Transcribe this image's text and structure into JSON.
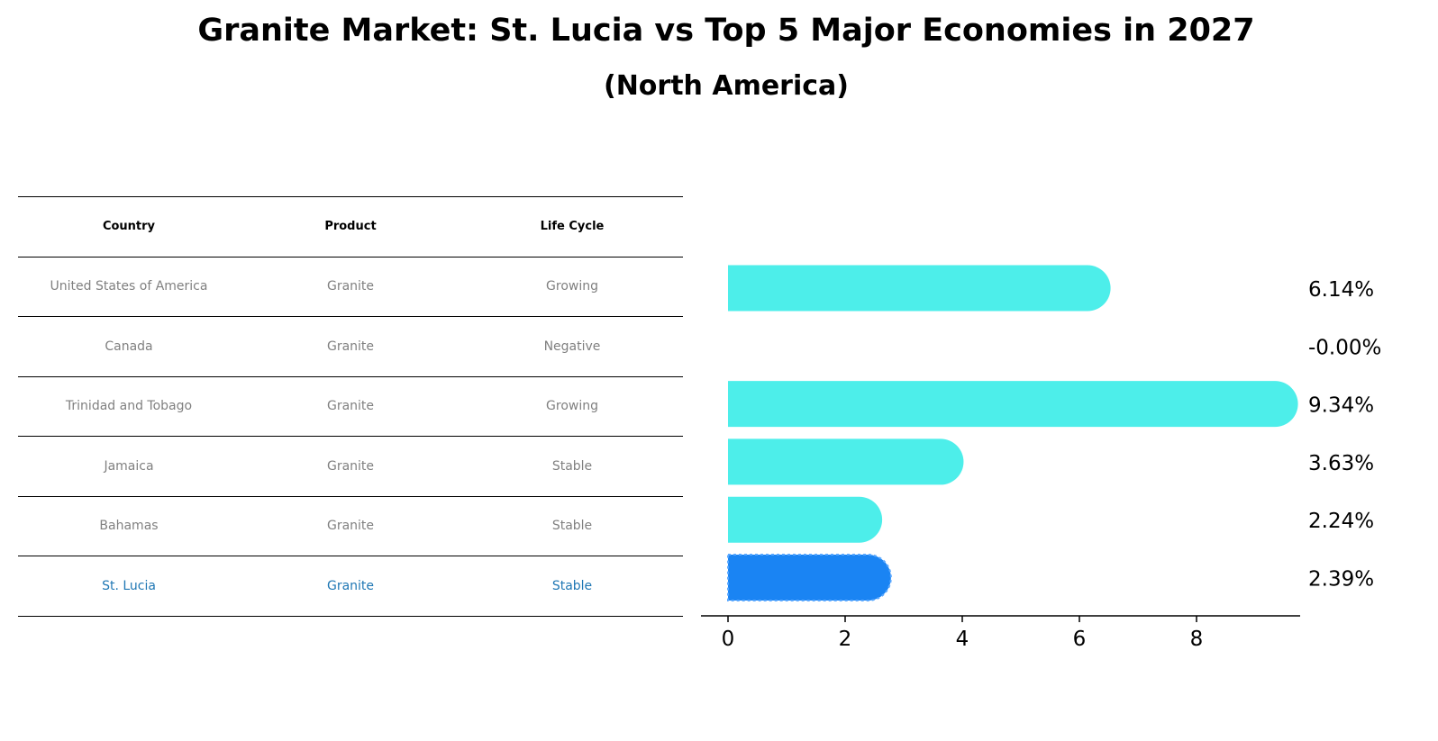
{
  "title": "Granite Market: St. Lucia vs Top 5 Major Economies in 2027",
  "subtitle": "(North America)",
  "table": {
    "headers": [
      "Country",
      "Product",
      "Life Cycle"
    ],
    "rows": [
      {
        "country": "United States of America",
        "product": "Granite",
        "life_cycle": "Growing"
      },
      {
        "country": "Canada",
        "product": "Granite",
        "life_cycle": "Negative"
      },
      {
        "country": "Trinidad and Tobago",
        "product": "Granite",
        "life_cycle": "Growing"
      },
      {
        "country": "Jamaica",
        "product": "Granite",
        "life_cycle": "Stable"
      },
      {
        "country": "Bahamas",
        "product": "Granite",
        "life_cycle": "Stable"
      },
      {
        "country": "St. Lucia",
        "product": "Granite",
        "life_cycle": "Stable"
      }
    ]
  },
  "colors": {
    "bar": "#4deeea",
    "highlight_bar": "#1a84f3",
    "highlight_text": "#1f77b4"
  },
  "chart_data": {
    "type": "bar",
    "orientation": "horizontal",
    "title": "Granite Market: St. Lucia vs Top 5 Major Economies in 2027",
    "subtitle": "(North America)",
    "categories": [
      "United States of America",
      "Canada",
      "Trinidad and Tobago",
      "Jamaica",
      "Bahamas",
      "St. Lucia"
    ],
    "values": [
      6.14,
      -0.0,
      9.34,
      3.63,
      2.24,
      2.39
    ],
    "labels": [
      "6.14%",
      "-0.00%",
      "9.34%",
      "3.63%",
      "2.24%",
      "2.39%"
    ],
    "highlight": "St. Lucia",
    "xlim": [
      -0.5,
      9.8
    ],
    "xticks": [
      0,
      2,
      4,
      6,
      8
    ],
    "xlabel": "",
    "ylabel": ""
  }
}
